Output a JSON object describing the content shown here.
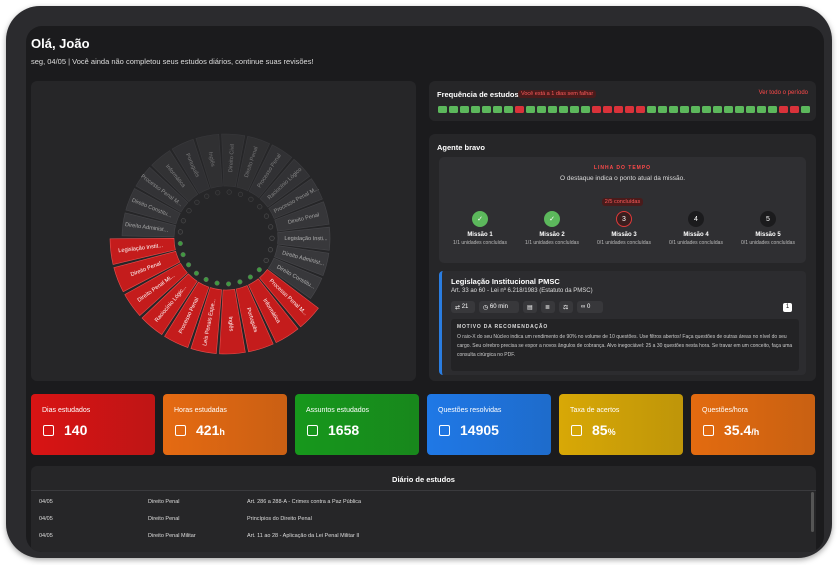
{
  "header": {
    "title": "Olá, João",
    "subtitle": "seg, 04/05 | Você ainda não completou seus estudos diários, continue suas revisões!"
  },
  "wheel": {
    "done_color": "#c41c1c",
    "pending_color": "#3a3a3d",
    "segments": [
      {
        "label": "Direito Civil",
        "done": false
      },
      {
        "label": "Direito Penal",
        "done": false
      },
      {
        "label": "Processo Penal",
        "done": false
      },
      {
        "label": "Raciocínio Lógico",
        "done": false
      },
      {
        "label": "Processo Penal M...",
        "done": false
      },
      {
        "label": "Direito Penal",
        "done": false
      },
      {
        "label": "Legislação Insti...",
        "done": false
      },
      {
        "label": "Direito Administ...",
        "done": false
      },
      {
        "label": "Direito Constitu...",
        "done": false
      },
      {
        "label": "Processo Penal M...",
        "done": true
      },
      {
        "label": "Informática",
        "done": true
      },
      {
        "label": "Português",
        "done": true
      },
      {
        "label": "Inglês",
        "done": true
      },
      {
        "label": "Leis Penais Espe...",
        "done": true
      },
      {
        "label": "Processo Penal",
        "done": true
      },
      {
        "label": "Raciocínio Lógic...",
        "done": true
      },
      {
        "label": "Direito Penal Mi...",
        "done": true
      },
      {
        "label": "Direito Penal",
        "done": true
      },
      {
        "label": "Legislação Instit...",
        "done": true
      },
      {
        "label": "Direito Administ...",
        "done": false
      },
      {
        "label": "Direito Constitu...",
        "done": false
      },
      {
        "label": "Processo Penal M...",
        "done": false
      },
      {
        "label": "Informática",
        "done": false
      },
      {
        "label": "Português",
        "done": false
      },
      {
        "label": "Inglês",
        "done": false
      }
    ]
  },
  "frequency": {
    "title": "Frequência de estudos",
    "streak": "Você está a 1 dias sem falhar",
    "link": "Ver todo o período",
    "studied_color": "#5cb85c",
    "missed_color": "#d9323a",
    "studied": [
      true,
      true,
      true,
      true,
      true,
      true,
      true,
      false,
      true,
      true,
      true,
      true,
      true,
      true,
      false,
      false,
      false,
      false,
      false,
      true,
      true,
      true,
      true,
      true,
      true,
      true,
      true,
      true,
      true,
      true,
      true,
      false,
      false,
      true
    ]
  },
  "agent": {
    "title": "Agente bravo",
    "timeline": "LINHA DO TEMPO",
    "hint": "O destaque indica o ponto atual da missão.",
    "progress": "2/5 concluídas",
    "missions": [
      {
        "title": "Missão 1",
        "progress": "1/1 unidades concluídas",
        "done": true
      },
      {
        "title": "Missão 2",
        "progress": "1/1 unidades concluídas",
        "done": true
      },
      {
        "title": "Missão 3",
        "step": 3,
        "progress": "0/1 unidades concluídas",
        "done": false,
        "current": true
      },
      {
        "title": "Missão 4",
        "step": 4,
        "progress": "0/1 unidades concluídas",
        "done": false,
        "current": false
      },
      {
        "title": "Missão 5",
        "step": 5,
        "progress": "0/1 unidades concluídas",
        "done": false,
        "current": false
      }
    ],
    "card": {
      "title": "Legislação Institucional PMSC",
      "subtitle": "Art. 33 ao 60 - Lei nº 6.218/1983 (Estatuto da PMSC)",
      "questions": 21,
      "time": "60 min",
      "links": 0,
      "count": 1,
      "reason_title": "MOTIVO DA RECOMENDAÇÃO",
      "reason": "O raio-X do seu Núcleo indica um rendimento de 90% no volume de 10 questões. Use filtros abertos! Faça questões de outras áreas no nível do seu cargo. Seu cérebro precisa se expor a novos ângulos de cobrança. Alvo inegociável: 25 a 30 questões nesta hora. Se travar em um conceito, faça uma consulta cirúrgica no PDF."
    }
  },
  "stats": [
    {
      "label": "Dias estudados",
      "value": 140,
      "color": "#d81414"
    },
    {
      "label": "Horas estudadas",
      "value": 421,
      "unit": "h",
      "color": "#e56a12"
    },
    {
      "label": "Assuntos estudados",
      "value": 1658,
      "color": "#17981c"
    },
    {
      "label": "Questões resolvidas",
      "value": 14905,
      "color": "#1f78e6"
    },
    {
      "label": "Taxa de acertos",
      "value": 85,
      "unit": "%",
      "color": "#d8a806"
    },
    {
      "label": "Questões/hora",
      "value": 35.4,
      "unit": "/h",
      "color": "#e36b10"
    }
  ],
  "diary": {
    "title": "Diário de estudos",
    "rows": [
      [
        "04/05",
        "Direito Penal",
        "Art. 286 a 288-A - Crimes contra a Paz Pública"
      ],
      [
        "04/05",
        "Direito Penal",
        "Princípios do Direito Penal"
      ],
      [
        "04/05",
        "Direito Penal Militar",
        "Art. 11 ao 28 - Aplicação da Lei Penal Militar II"
      ]
    ]
  }
}
